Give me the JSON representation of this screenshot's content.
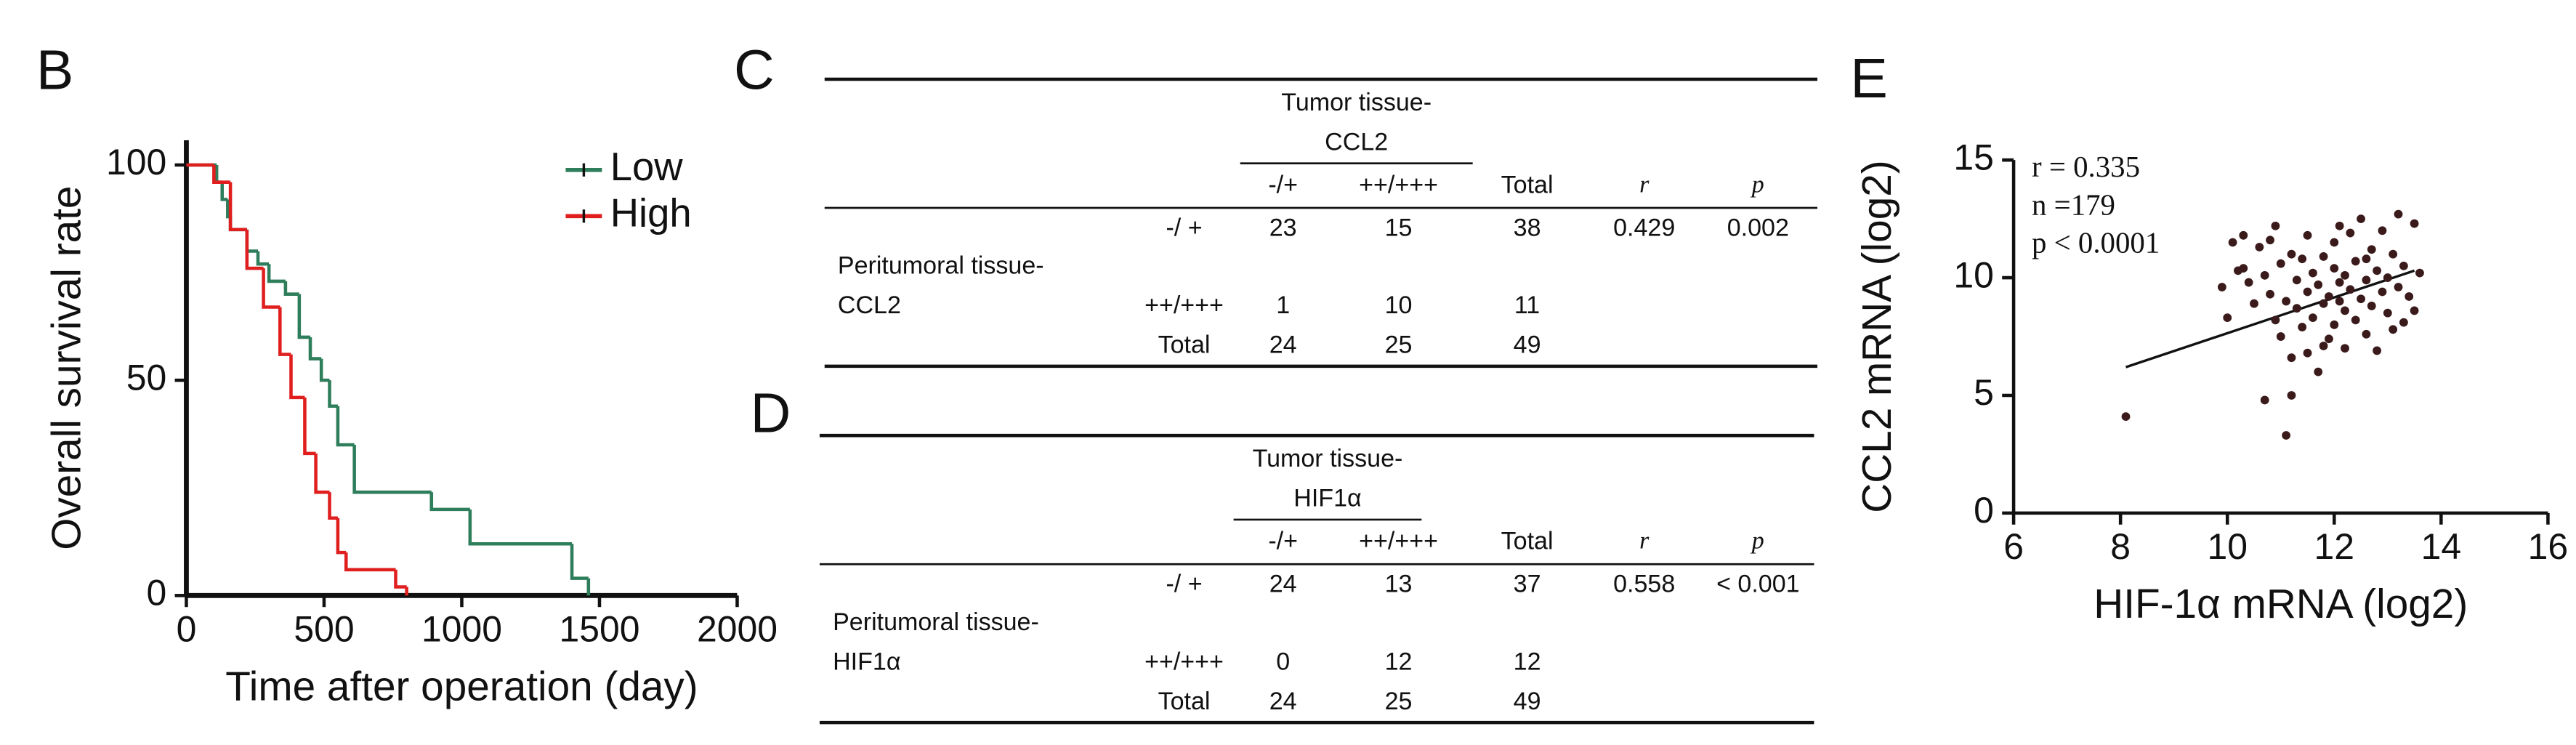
{
  "chart_data": [
    {
      "type": "line",
      "panel": "B",
      "step": true,
      "ylabel": "Overall survival rate",
      "xlabel": "Time after operation (day)",
      "xlim": [
        0,
        2000
      ],
      "xticks": [
        0,
        500,
        1000,
        1500,
        2000
      ],
      "ylim": [
        0,
        100
      ],
      "yticks": [
        0,
        50,
        100
      ],
      "legend": "upper right",
      "series": [
        {
          "name": "Low",
          "color": "#2e7d5b",
          "x": [
            0,
            100,
            110,
            130,
            150,
            160,
            220,
            260,
            300,
            360,
            410,
            450,
            490,
            520,
            550,
            610,
            890,
            1030,
            1400,
            1460
          ],
          "values": [
            100,
            100,
            96,
            92,
            88,
            85,
            80,
            77,
            73,
            70,
            60,
            55,
            50,
            44,
            35,
            24,
            20,
            12,
            4,
            0
          ]
        },
        {
          "name": "High",
          "color": "#e01e1e",
          "x": [
            0,
            100,
            160,
            220,
            280,
            340,
            380,
            430,
            470,
            520,
            550,
            580,
            760,
            800
          ],
          "values": [
            100,
            96,
            85,
            76,
            67,
            56,
            46,
            33,
            24,
            18,
            10,
            6,
            2,
            0
          ]
        }
      ]
    },
    {
      "type": "scatter",
      "panel": "E",
      "ylabel": "CCL2 mRNA (log2)",
      "xlabel": "HIF-1α mRNA (log2)",
      "annotations": [
        "r = 0.335",
        "n =179",
        "p < 0.0001"
      ],
      "xlim": [
        6,
        16
      ],
      "xticks": [
        6,
        8,
        10,
        12,
        14,
        16
      ],
      "ylim": [
        0,
        15
      ],
      "yticks": [
        0,
        5,
        10,
        15
      ],
      "color": "#3a1a1a",
      "fit_line": {
        "x": [
          8.1,
          13.5
        ],
        "values": [
          6.2,
          10.3
        ]
      },
      "x": [
        10.2,
        10.3,
        10.1,
        10.4,
        10.5,
        10.6,
        10.7,
        10.8,
        10.8,
        10.9,
        11.0,
        11.0,
        11.1,
        11.2,
        11.2,
        11.3,
        11.3,
        11.4,
        11.4,
        11.5,
        11.5,
        11.6,
        11.6,
        11.7,
        11.7,
        11.8,
        11.8,
        11.9,
        11.9,
        12.0,
        12.0,
        12.0,
        12.1,
        12.1,
        12.2,
        12.2,
        12.2,
        12.3,
        12.3,
        12.4,
        12.4,
        12.5,
        12.5,
        12.6,
        12.6,
        12.7,
        12.7,
        12.8,
        12.8,
        12.9,
        12.9,
        13.0,
        13.0,
        13.1,
        13.1,
        13.2,
        13.2,
        13.3,
        13.3,
        13.4,
        13.5,
        13.5,
        13.6,
        11.5,
        10.9,
        12.1,
        9.9,
        10.0,
        8.1,
        11.1,
        10.7,
        11.2,
        10.3,
        11.8,
        12.6
      ],
      "values": [
        10.3,
        10.4,
        11.5,
        9.8,
        8.9,
        11.3,
        10.1,
        9.3,
        11.6,
        8.2,
        7.5,
        10.6,
        9.0,
        6.6,
        11.0,
        8.7,
        9.9,
        10.8,
        7.9,
        9.4,
        11.8,
        8.3,
        10.2,
        6.0,
        9.7,
        8.9,
        10.9,
        7.4,
        9.2,
        10.4,
        8.0,
        11.5,
        9.0,
        9.8,
        7.0,
        10.1,
        8.6,
        9.5,
        11.9,
        8.2,
        10.7,
        9.1,
        12.5,
        7.6,
        9.9,
        8.8,
        11.2,
        10.3,
        6.9,
        9.4,
        12.0,
        8.5,
        10.0,
        7.8,
        11.0,
        9.6,
        12.7,
        8.1,
        10.5,
        9.2,
        12.3,
        8.6,
        10.2,
        6.8,
        12.2,
        12.2,
        9.6,
        8.3,
        4.1,
        3.3,
        4.8,
        5.0,
        11.8,
        7.1,
        10.8
      ]
    }
  ],
  "tables": [
    {
      "panel": "C",
      "column_group": [
        "Tumor tissue-",
        "CCL2"
      ],
      "columns": [
        "-/+",
        "++/+++",
        "Total",
        "r",
        "p"
      ],
      "row_group": [
        "Peritumoral tissue-",
        "CCL2"
      ],
      "rows": [
        [
          "-/ +",
          "23",
          "15",
          "38",
          "0.429",
          "0.002"
        ],
        [
          "++/+++",
          "1",
          "10",
          "11"
        ],
        [
          "Total",
          "24",
          "25",
          "49"
        ]
      ]
    },
    {
      "panel": "D",
      "column_group": [
        "Tumor tissue-",
        "HIF1α"
      ],
      "columns": [
        "-/+",
        "++/+++",
        "Total",
        "r",
        "p"
      ],
      "row_group": [
        "Peritumoral tissue-",
        "HIF1α"
      ],
      "rows": [
        [
          "-/ +",
          "24",
          "13",
          "37",
          "0.558",
          "< 0.001"
        ],
        [
          "++/+++",
          "0",
          "12",
          "12"
        ],
        [
          "Total",
          "24",
          "25",
          "49"
        ]
      ]
    }
  ]
}
